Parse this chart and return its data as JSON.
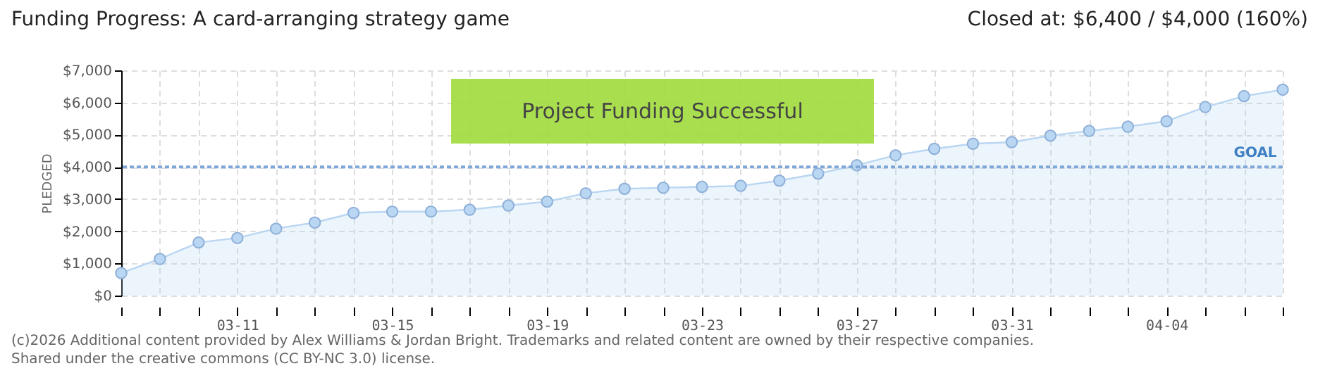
{
  "chart_data": {
    "type": "area",
    "title": "Funding Progress: A card-arranging strategy game",
    "subtitle": "Closed at: $6,400 / $4,000 (160%)",
    "ylabel": "PLEDGED",
    "categories": [
      null,
      null,
      null,
      "03-11",
      null,
      null,
      null,
      "03-15",
      null,
      null,
      null,
      "03-19",
      null,
      null,
      null,
      "03-23",
      null,
      null,
      null,
      "03-27",
      null,
      null,
      null,
      "03-31",
      null,
      null,
      null,
      "04-04",
      null,
      null,
      null
    ],
    "series": [
      {
        "color": "#b9d6f2",
        "values": [
          700,
          1140,
          1650,
          1790,
          2080,
          2270,
          2570,
          2610,
          2610,
          2670,
          2800,
          2920,
          3180,
          3320,
          3350,
          3380,
          3410,
          3570,
          3790,
          4050,
          4360,
          4560,
          4720,
          4770,
          4970,
          5120,
          5250,
          5420,
          5860,
          6200,
          6400
        ]
      }
    ],
    "ylim": [
      0,
      7000
    ],
    "yticks": [
      {
        "value": 0,
        "label": "$0"
      },
      {
        "value": 1000,
        "label": "$1,000"
      },
      {
        "value": 2000,
        "label": "$2,000"
      },
      {
        "value": 3000,
        "label": "$3,000"
      },
      {
        "value": 4000,
        "label": "$4,000"
      },
      {
        "value": 5000,
        "label": "$5,000"
      },
      {
        "value": 6000,
        "label": "$6,000"
      },
      {
        "value": 7000,
        "label": "$7,000"
      }
    ],
    "grid": true,
    "marker": "circle",
    "ref_lines": [
      {
        "axis": "y",
        "value": 4000,
        "label": "GOAL",
        "color": "#7fa7d8",
        "line_style": "dotted"
      }
    ],
    "annotations": [
      "Project Funding Successful",
      "(c)2026 Additional content provided by Alex Williams & Jordan Bright. Trademarks and related content are owned by their respective companies.",
      "Shared under the creative commons (CC BY-NC 3.0) license."
    ]
  }
}
